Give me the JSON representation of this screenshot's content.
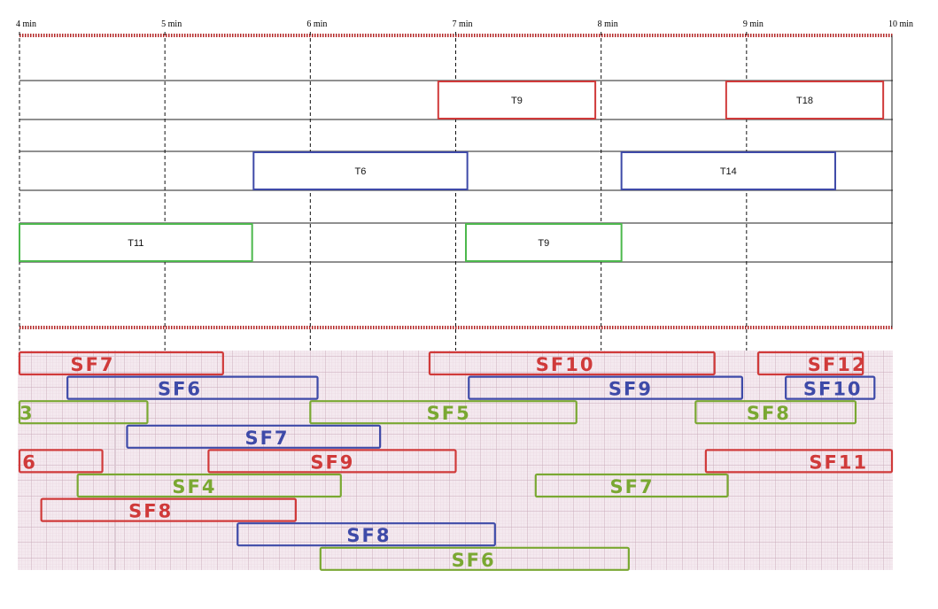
{
  "timeline": {
    "start_min": 4,
    "end_min": 10,
    "ticks": [
      {
        "value": 4,
        "label": "4 min"
      },
      {
        "value": 5,
        "label": "5 min"
      },
      {
        "value": 6,
        "label": "6 min"
      },
      {
        "value": 7,
        "label": "7 min"
      },
      {
        "value": 8,
        "label": "8 min"
      },
      {
        "value": 9,
        "label": "9 min"
      },
      {
        "value": 10,
        "label": "10 min"
      }
    ]
  },
  "colors": {
    "red": "#d03a3a",
    "blue": "#3e4aa8",
    "green": "#4cb84c",
    "green_hand": "#7aa832",
    "dash_red": "#b42828",
    "grid_paper": "#f4e9ef"
  },
  "tasks": [
    {
      "label": "T9",
      "row": 1,
      "start": 6.88,
      "end": 7.96,
      "color": "red"
    },
    {
      "label": "T18",
      "row": 1,
      "start": 8.86,
      "end": 9.94,
      "color": "red"
    },
    {
      "label": "T6",
      "row": 3,
      "start": 5.61,
      "end": 7.08,
      "color": "blue"
    },
    {
      "label": "T14",
      "row": 3,
      "start": 8.14,
      "end": 9.61,
      "color": "blue"
    },
    {
      "label": "T11",
      "row": 5,
      "start": 4.0,
      "end": 5.6,
      "color": "green"
    },
    {
      "label": "T9",
      "row": 5,
      "start": 7.07,
      "end": 8.14,
      "color": "green"
    }
  ],
  "handwritten_bars": [
    {
      "label": "SF7",
      "lane": 0,
      "start": 4.0,
      "end": 5.4,
      "color": "red",
      "label_at": 4.35
    },
    {
      "label": "SF10",
      "lane": 0,
      "start": 6.82,
      "end": 8.78,
      "color": "red",
      "label_at": 7.55
    },
    {
      "label": "SF12",
      "lane": 0,
      "start": 9.08,
      "end": 9.8,
      "color": "red",
      "label_at": 9.42
    },
    {
      "label": "SF6",
      "lane": 1,
      "start": 4.33,
      "end": 6.05,
      "color": "blue",
      "label_at": 4.95
    },
    {
      "label": "SF9",
      "lane": 1,
      "start": 7.09,
      "end": 8.97,
      "color": "blue",
      "label_at": 8.05
    },
    {
      "label": "SF10",
      "lane": 1,
      "start": 9.27,
      "end": 9.88,
      "color": "blue",
      "label_at": 9.39
    },
    {
      "label": "3",
      "lane": 2,
      "start": 4.0,
      "end": 4.88,
      "color": "green_hand",
      "label_at": 4.0
    },
    {
      "label": "SF5",
      "lane": 2,
      "start": 6.0,
      "end": 7.83,
      "color": "green_hand",
      "label_at": 6.8
    },
    {
      "label": "SF8",
      "lane": 2,
      "start": 8.65,
      "end": 9.75,
      "color": "green_hand",
      "label_at": 9.0
    },
    {
      "label": "SF7",
      "lane": 3,
      "start": 4.74,
      "end": 6.48,
      "color": "blue",
      "label_at": 5.55
    },
    {
      "label": "6",
      "lane": 4,
      "start": 4.0,
      "end": 4.57,
      "color": "red",
      "label_at": 4.02
    },
    {
      "label": "SF9",
      "lane": 4,
      "start": 5.3,
      "end": 7.0,
      "color": "red",
      "label_at": 6.0
    },
    {
      "label": "SF11",
      "lane": 4,
      "start": 8.72,
      "end": 10.0,
      "color": "red",
      "label_at": 9.43
    },
    {
      "label": "SF4",
      "lane": 5,
      "start": 4.4,
      "end": 6.21,
      "color": "green_hand",
      "label_at": 5.05
    },
    {
      "label": "SF7",
      "lane": 5,
      "start": 7.55,
      "end": 8.87,
      "color": "green_hand",
      "label_at": 8.06
    },
    {
      "label": "SF8",
      "lane": 6,
      "start": 4.15,
      "end": 5.9,
      "color": "red",
      "label_at": 4.75
    },
    {
      "label": "SF8",
      "lane": 7,
      "start": 5.5,
      "end": 7.27,
      "color": "blue",
      "label_at": 6.25
    },
    {
      "label": "SF6",
      "lane": 8,
      "start": 6.07,
      "end": 8.19,
      "color": "green_hand",
      "label_at": 6.97
    }
  ]
}
